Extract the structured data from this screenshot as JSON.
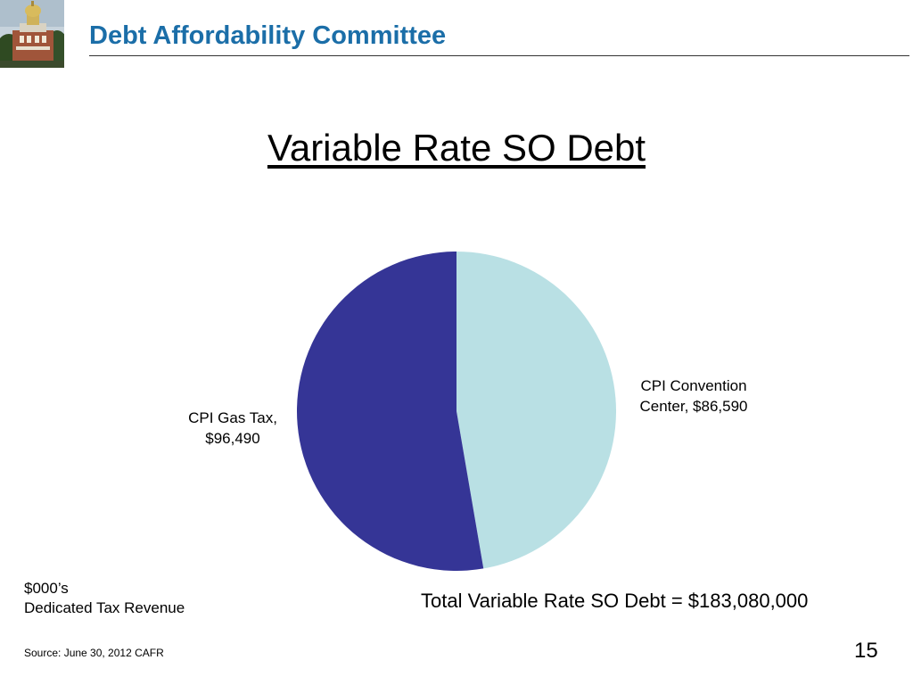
{
  "header": {
    "title": "Debt Affordability Committee"
  },
  "slide": {
    "title": "Variable Rate SO Debt",
    "units_line1": "$000’s",
    "units_line2": "Dedicated Tax Revenue",
    "total": "Total Variable Rate SO Debt = $183,080,000",
    "source": "Source: June 30, 2012 CAFR",
    "page_number": "15"
  },
  "chart_data": {
    "type": "pie",
    "title": "Variable Rate SO Debt",
    "slices": [
      {
        "label_line1": "CPI Convention",
        "label_line2": "Center,  $86,590",
        "name": "CPI Convention Center",
        "value": 86590,
        "color": "#b9e0e4"
      },
      {
        "label_line1": "CPI Gas Tax,",
        "label_line2": "$96,490",
        "name": "CPI Gas Tax",
        "value": 96490,
        "color": "#353596"
      }
    ]
  }
}
